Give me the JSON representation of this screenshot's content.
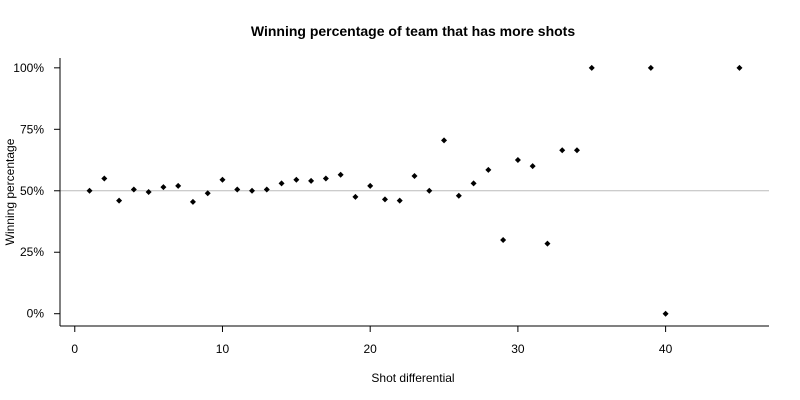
{
  "chart_data": {
    "type": "scatter",
    "title": "Winning percentage of team that has more shots",
    "xlabel": "Shot differential",
    "ylabel": "Winning percentage",
    "xlim": [
      -1,
      47
    ],
    "ylim": [
      -0.05,
      1.04
    ],
    "x_ticks": [
      {
        "value": 0,
        "label": "0"
      },
      {
        "value": 10,
        "label": "10"
      },
      {
        "value": 20,
        "label": "20"
      },
      {
        "value": 30,
        "label": "30"
      },
      {
        "value": 40,
        "label": "40"
      }
    ],
    "y_ticks": [
      {
        "value": 0,
        "label": "0%"
      },
      {
        "value": 0.25,
        "label": "25%"
      },
      {
        "value": 0.5,
        "label": "50%"
      },
      {
        "value": 0.75,
        "label": "75%"
      },
      {
        "value": 1,
        "label": "100%"
      }
    ],
    "reference_line": {
      "y": 0.5,
      "color": "#bbbbbb"
    },
    "point_color": "#000000",
    "grid": false,
    "legend": null,
    "points": [
      {
        "x": 1,
        "y": 0.5
      },
      {
        "x": 2,
        "y": 0.55
      },
      {
        "x": 3,
        "y": 0.46
      },
      {
        "x": 4,
        "y": 0.505
      },
      {
        "x": 5,
        "y": 0.495
      },
      {
        "x": 6,
        "y": 0.515
      },
      {
        "x": 7,
        "y": 0.52
      },
      {
        "x": 8,
        "y": 0.455
      },
      {
        "x": 9,
        "y": 0.49
      },
      {
        "x": 10,
        "y": 0.545
      },
      {
        "x": 11,
        "y": 0.505
      },
      {
        "x": 12,
        "y": 0.5
      },
      {
        "x": 13,
        "y": 0.505
      },
      {
        "x": 14,
        "y": 0.53
      },
      {
        "x": 15,
        "y": 0.545
      },
      {
        "x": 16,
        "y": 0.54
      },
      {
        "x": 17,
        "y": 0.55
      },
      {
        "x": 18,
        "y": 0.565
      },
      {
        "x": 19,
        "y": 0.475
      },
      {
        "x": 20,
        "y": 0.52
      },
      {
        "x": 21,
        "y": 0.465
      },
      {
        "x": 22,
        "y": 0.46
      },
      {
        "x": 23,
        "y": 0.56
      },
      {
        "x": 24,
        "y": 0.5
      },
      {
        "x": 25,
        "y": 0.705
      },
      {
        "x": 26,
        "y": 0.48
      },
      {
        "x": 27,
        "y": 0.53
      },
      {
        "x": 28,
        "y": 0.585
      },
      {
        "x": 29,
        "y": 0.3
      },
      {
        "x": 30,
        "y": 0.625
      },
      {
        "x": 31,
        "y": 0.6
      },
      {
        "x": 32,
        "y": 0.285
      },
      {
        "x": 33,
        "y": 0.665
      },
      {
        "x": 34,
        "y": 0.665
      },
      {
        "x": 35,
        "y": 1.0
      },
      {
        "x": 39,
        "y": 1.0
      },
      {
        "x": 40,
        "y": 0.0
      },
      {
        "x": 45,
        "y": 1.0
      }
    ]
  }
}
